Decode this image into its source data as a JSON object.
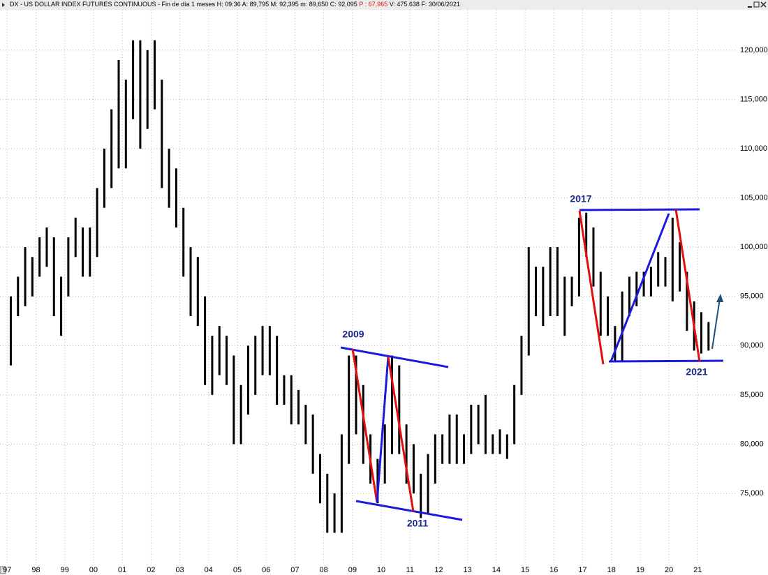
{
  "chart_data": {
    "type": "range-bar",
    "title": "DX - US DOLLAR INDEX FUTURES CONTINUOUS - Fin de día 1 meses",
    "info": [
      "H: 09:36",
      "A: 89,795",
      "M: 92,395",
      "m: 89,650",
      "C: 92,095"
    ],
    "info_highlight": "P : 67,965",
    "info_tail": [
      "V: 475.638",
      "F: 30/06/2021"
    ],
    "color": "#000000",
    "grid": true,
    "x": [
      1997.125,
      1997.375,
      1997.625,
      1997.875,
      1998.125,
      1998.375,
      1998.625,
      1998.875,
      1999.125,
      1999.375,
      1999.625,
      1999.875,
      2000.125,
      2000.375,
      2000.625,
      2000.875,
      2001.125,
      2001.375,
      2001.625,
      2001.875,
      2002.125,
      2002.375,
      2002.625,
      2002.875,
      2003.125,
      2003.375,
      2003.625,
      2003.875,
      2004.125,
      2004.375,
      2004.625,
      2004.875,
      2005.125,
      2005.375,
      2005.625,
      2005.875,
      2006.125,
      2006.375,
      2006.625,
      2006.875,
      2007.125,
      2007.375,
      2007.625,
      2007.875,
      2008.125,
      2008.375,
      2008.625,
      2008.875,
      2009.125,
      2009.375,
      2009.625,
      2009.875,
      2010.125,
      2010.375,
      2010.625,
      2010.875,
      2011.125,
      2011.375,
      2011.625,
      2011.875,
      2012.125,
      2012.375,
      2012.625,
      2012.875,
      2013.125,
      2013.375,
      2013.625,
      2013.875,
      2014.125,
      2014.375,
      2014.625,
      2014.875,
      2015.125,
      2015.375,
      2015.625,
      2015.875,
      2016.125,
      2016.375,
      2016.625,
      2016.875,
      2017.125,
      2017.375,
      2017.625,
      2017.875,
      2018.125,
      2018.375,
      2018.625,
      2018.875,
      2019.125,
      2019.375,
      2019.625,
      2019.875,
      2020.125,
      2020.375,
      2020.625,
      2020.875,
      2021.125,
      2021.375
    ],
    "low": [
      88,
      93,
      94,
      95,
      97,
      98,
      93,
      91,
      95,
      99,
      97,
      97,
      99,
      104,
      106,
      108,
      108,
      113,
      110,
      112,
      114,
      106,
      104,
      102,
      97,
      93,
      92,
      86,
      85,
      87,
      86,
      80,
      80,
      83,
      85,
      87,
      87,
      84,
      84,
      82,
      82,
      80,
      77,
      74,
      71,
      71,
      71,
      78,
      81,
      78,
      76,
      74,
      76,
      79,
      79,
      76,
      75,
      72.5,
      73,
      76,
      78,
      78,
      78,
      78,
      79,
      80,
      79,
      79,
      79,
      78.5,
      80,
      85,
      89,
      93,
      92,
      93,
      93,
      91,
      94,
      95,
      99,
      96,
      91,
      91,
      88.5,
      88.5,
      93,
      94,
      95,
      95,
      96,
      96,
      94.5,
      95.5,
      91.5,
      89.5,
      89.2,
      89.5
    ],
    "high": [
      95,
      97,
      100,
      99,
      101,
      102,
      101,
      97,
      101,
      103,
      102,
      102,
      106,
      110,
      114,
      119,
      117,
      121,
      121,
      120,
      121,
      117,
      110,
      108,
      104,
      100,
      99,
      95,
      91,
      92,
      91,
      89,
      86,
      90,
      91,
      92,
      92,
      91,
      87,
      87,
      85.5,
      84,
      83,
      79,
      77,
      75,
      81,
      89,
      89,
      86,
      81,
      78.5,
      82,
      89,
      88,
      82,
      80,
      77,
      79,
      81,
      81,
      83,
      83,
      81,
      84,
      84,
      85,
      81,
      81.5,
      81,
      86,
      91,
      100,
      98,
      98,
      100,
      100,
      97,
      97,
      103,
      103.5,
      102,
      97.5,
      95,
      92,
      95.5,
      97,
      97.5,
      97.5,
      98,
      99.5,
      99,
      103,
      100.5,
      97.5,
      94.5,
      93.4,
      92.4
    ],
    "xlim": [
      1996.75,
      2022.35
    ],
    "xticks": [
      {
        "value": 1997,
        "label": "97"
      },
      {
        "value": 1998,
        "label": "98"
      },
      {
        "value": 1999,
        "label": "99"
      },
      {
        "value": 2000,
        "label": "00"
      },
      {
        "value": 2001,
        "label": "01"
      },
      {
        "value": 2002,
        "label": "02"
      },
      {
        "value": 2003,
        "label": "03"
      },
      {
        "value": 2004,
        "label": "04"
      },
      {
        "value": 2005,
        "label": "05"
      },
      {
        "value": 2006,
        "label": "06"
      },
      {
        "value": 2007,
        "label": "07"
      },
      {
        "value": 2008,
        "label": "08"
      },
      {
        "value": 2009,
        "label": "09"
      },
      {
        "value": 2010,
        "label": "10"
      },
      {
        "value": 2011,
        "label": "11"
      },
      {
        "value": 2012,
        "label": "12"
      },
      {
        "value": 2013,
        "label": "13"
      },
      {
        "value": 2014,
        "label": "14"
      },
      {
        "value": 2015,
        "label": "15"
      },
      {
        "value": 2016,
        "label": "16"
      },
      {
        "value": 2017,
        "label": "17"
      },
      {
        "value": 2018,
        "label": "18"
      },
      {
        "value": 2019,
        "label": "19"
      },
      {
        "value": 2020,
        "label": "20"
      },
      {
        "value": 2021,
        "label": "21"
      }
    ],
    "ylim": [
      67.85,
      124.1
    ],
    "yticks": [
      {
        "value": 75,
        "label": "75,000"
      },
      {
        "value": 80,
        "label": "80,000"
      },
      {
        "value": 85,
        "label": "85,000"
      },
      {
        "value": 90,
        "label": "90,000"
      },
      {
        "value": 95,
        "label": "95,000"
      },
      {
        "value": 100,
        "label": "100,000"
      },
      {
        "value": 105,
        "label": "105,000"
      },
      {
        "value": 110,
        "label": "110,000"
      },
      {
        "value": 115,
        "label": "115,000"
      },
      {
        "value": 120,
        "label": "120,000"
      }
    ],
    "annotations": [
      "2009",
      "2011",
      "2017",
      "2021"
    ]
  }
}
